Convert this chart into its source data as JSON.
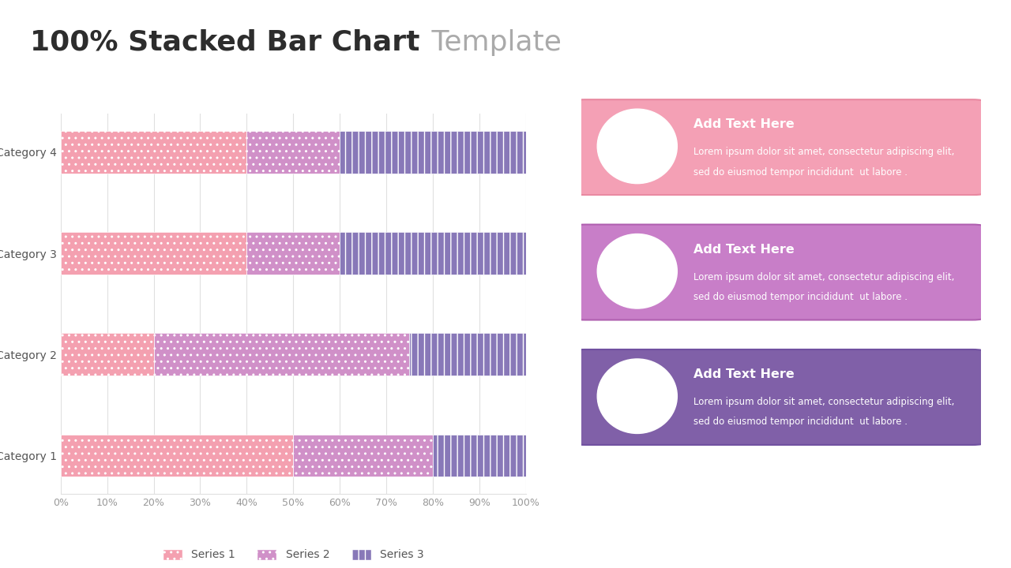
{
  "title_bold": "100% Stacked Bar Chart",
  "title_light": " Template",
  "title_bold_color": "#2d2d2d",
  "title_light_color": "#aaaaaa",
  "title_fontsize": 26,
  "categories": [
    "Category 1",
    "Category 2",
    "Category 3",
    "Category 4"
  ],
  "series_labels": [
    "Series 1",
    "Series 2",
    "Series 3"
  ],
  "data": [
    [
      50,
      30,
      20
    ],
    [
      20,
      55,
      25
    ],
    [
      40,
      20,
      40
    ],
    [
      40,
      20,
      40
    ]
  ],
  "series1_color": "#f4a0b0",
  "series2_color": "#d090c8",
  "series3_color": "#8878b8",
  "background": "#ffffff",
  "grid_color": "#e0e0e0",
  "axis_label_color": "#999999",
  "category_label_color": "#555555",
  "legend_fontsize": 10,
  "bar_height": 0.42,
  "info_boxes": [
    {
      "bg_color": "#f4a0b5",
      "border_color": "#e888a0",
      "title": "Add Text Here",
      "body1": "Lorem ipsum dolor sit amet, consectetur adipiscing elit,",
      "body2": "sed do eiusmod tempor incididunt  ut labore .",
      "icon_color": "#f4a0b5"
    },
    {
      "bg_color": "#c87ec8",
      "border_color": "#b060b0",
      "title": "Add Text Here",
      "body1": "Lorem ipsum dolor sit amet, consectetur adipiscing elit,",
      "body2": "sed do eiusmod tempor incididunt  ut labore .",
      "icon_color": "#c87ec8"
    },
    {
      "bg_color": "#8060a8",
      "border_color": "#7050a0",
      "title": "Add Text Here",
      "body1": "Lorem ipsum dolor sit amet, consectetur adipiscing elit,",
      "body2": "sed do eiusmod tempor incididunt  ut labore .",
      "icon_color": "#8060a8"
    }
  ]
}
